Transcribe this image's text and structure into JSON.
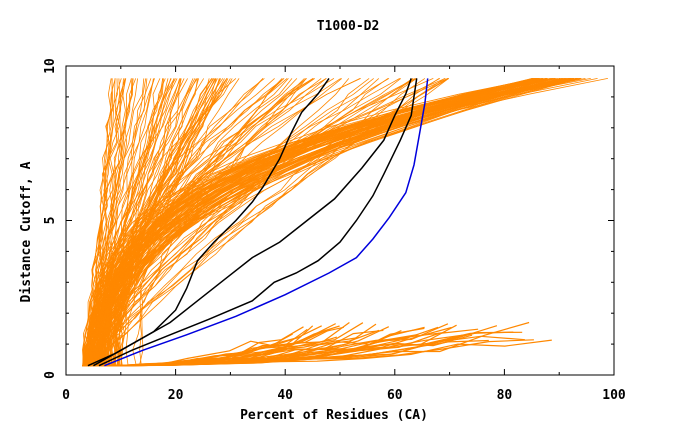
{
  "chart_data": {
    "type": "line",
    "title": "T1000-D2",
    "xlabel": "Percent of Residues (CA)",
    "ylabel": "Distance Cutoff, A",
    "xlim": [
      0,
      100
    ],
    "ylim": [
      0,
      10
    ],
    "x_ticks": [
      "0",
      "20",
      "40",
      "60",
      "80",
      "100"
    ],
    "y_ticks": [
      "0",
      "5",
      "10"
    ],
    "x_tick_values": [
      0,
      20,
      40,
      60,
      80,
      100
    ],
    "y_tick_values": [
      0,
      5,
      10
    ],
    "grid": false,
    "legend": "none",
    "background_colors": {
      "main": "#ff8800"
    },
    "highlight_series": [
      {
        "color": "#000000",
        "points": [
          [
            5,
            0.3
          ],
          [
            8,
            0.6
          ],
          [
            12,
            1.0
          ],
          [
            16,
            1.4
          ],
          [
            20,
            2.1
          ],
          [
            22,
            2.8
          ],
          [
            24,
            3.7
          ],
          [
            27,
            4.3
          ],
          [
            31,
            5.0
          ],
          [
            34,
            5.6
          ],
          [
            36,
            6.1
          ],
          [
            39,
            7.0
          ],
          [
            41,
            7.8
          ],
          [
            43,
            8.5
          ],
          [
            46,
            9.1
          ],
          [
            48,
            9.6
          ]
        ]
      },
      {
        "color": "#000000",
        "points": [
          [
            4,
            0.3
          ],
          [
            9,
            0.7
          ],
          [
            14,
            1.2
          ],
          [
            19,
            1.7
          ],
          [
            24,
            2.4
          ],
          [
            29,
            3.1
          ],
          [
            34,
            3.8
          ],
          [
            39,
            4.3
          ],
          [
            44,
            5.0
          ],
          [
            49,
            5.7
          ],
          [
            54,
            6.7
          ],
          [
            58,
            7.6
          ],
          [
            60,
            8.4
          ],
          [
            62,
            9.1
          ],
          [
            63,
            9.6
          ]
        ]
      },
      {
        "color": "#000000",
        "points": [
          [
            6,
            0.3
          ],
          [
            12,
            0.8
          ],
          [
            19,
            1.3
          ],
          [
            26,
            1.8
          ],
          [
            34,
            2.4
          ],
          [
            38,
            3.0
          ],
          [
            42,
            3.3
          ],
          [
            46,
            3.7
          ],
          [
            50,
            4.3
          ],
          [
            53,
            5.0
          ],
          [
            56,
            5.8
          ],
          [
            58,
            6.5
          ],
          [
            61,
            7.6
          ],
          [
            63,
            8.4
          ],
          [
            64,
            9.6
          ]
        ]
      },
      {
        "color": "#0000dd",
        "points": [
          [
            7,
            0.3
          ],
          [
            14,
            0.8
          ],
          [
            22,
            1.3
          ],
          [
            31,
            1.9
          ],
          [
            40,
            2.6
          ],
          [
            48,
            3.3
          ],
          [
            53,
            3.8
          ],
          [
            56,
            4.4
          ],
          [
            59,
            5.1
          ],
          [
            62,
            5.9
          ],
          [
            63.5,
            6.8
          ],
          [
            64.5,
            7.8
          ],
          [
            65.5,
            8.8
          ],
          [
            66,
            9.6
          ]
        ]
      }
    ]
  }
}
